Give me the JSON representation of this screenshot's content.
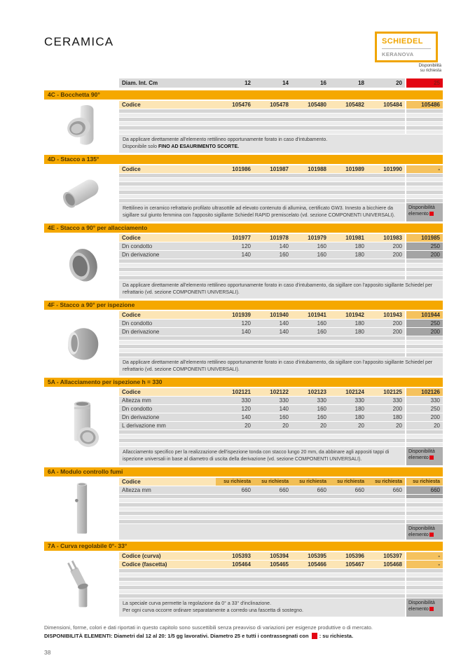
{
  "header": {
    "title": "CERAMICA",
    "logo": {
      "brand": "SCHIEDEL",
      "sub": "KERANOVA"
    },
    "availability_note": {
      "line1": "Disponibilità",
      "line2": "su richiesta"
    }
  },
  "colors": {
    "accent_orange": "#F5A800",
    "logo_orange": "#F0A500",
    "red": "#E30613",
    "codice_cream": "#FCE5B5",
    "codice_amber": "#F5C25E",
    "row_gray": "#DCDCDC",
    "dark_cell_gray": "#A4A4A4",
    "description_gray": "#E3E3E3",
    "availability_box_gray": "#AEAEAE"
  },
  "table": {
    "header_label": "Diam. Int. Cm",
    "columns": [
      "12",
      "14",
      "16",
      "18",
      "20",
      "25"
    ]
  },
  "availability_box": {
    "line1": "Disponibilità",
    "line2": "elemento"
  },
  "sections": [
    {
      "id": "4C",
      "title": "4C - Bocchetta 90°",
      "image": "bocchetta-90",
      "rows": [
        {
          "label": "Codice",
          "kind": "codice",
          "values": [
            "105476",
            "105478",
            "105480",
            "105482",
            "105484",
            "105486"
          ]
        }
      ],
      "stripes": 6,
      "description": [
        [
          {
            "t": "Da applicare direttamente all'elemento rettilineo opportunamente forato in caso d'intubamento.",
            "b": false
          }
        ],
        [
          {
            "t": "Disponibile solo ",
            "b": false
          },
          {
            "t": "FINO AD ESAURIMENTO SCORTE.",
            "b": true
          }
        ]
      ],
      "has_box": false
    },
    {
      "id": "4D",
      "title": "4D - Stacco a 135°",
      "image": "stacco-135",
      "rows": [
        {
          "label": "Codice",
          "kind": "codice",
          "values": [
            "101986",
            "101987",
            "101988",
            "101989",
            "101990",
            "-"
          ]
        }
      ],
      "stripes": 7,
      "description": [
        [
          {
            "t": "Rettilineo in ceramico refrattario profilato ultrasottile ad elevato contenuto di allumina, certificato GW3. Innesto a bicchiere da sigillare sul giunto femmina con l'apposito sigillante Schiedel RAPID premiscelato (vd. sezione COMPONENTI UNIVERSALI).",
            "b": false
          }
        ]
      ],
      "has_box": true
    },
    {
      "id": "4E",
      "title": "4E - Stacco a 90° per allacciamento",
      "image": "stacco-90-allacciamento",
      "rows": [
        {
          "label": "Codice",
          "kind": "codice",
          "values": [
            "101977",
            "101978",
            "101979",
            "101981",
            "101983",
            "101985"
          ]
        },
        {
          "label": "Dn condotto",
          "kind": "data",
          "dark_last": true,
          "values": [
            "120",
            "140",
            "160",
            "180",
            "200",
            "250"
          ]
        },
        {
          "label": "Dn derivazione",
          "kind": "data",
          "dark_last": true,
          "values": [
            "140",
            "160",
            "160",
            "180",
            "200",
            "200"
          ]
        }
      ],
      "stripes": 5,
      "description": [
        [
          {
            "t": "Da applicare direttamente all'elemento rettilineo opportunamente forato in caso d'intubamento, da sigillare con l'apposito sigillante Schiedel per refrattario (vd. sezione COMPONENTI UNIVERSALI).",
            "b": false
          }
        ]
      ],
      "has_box": false
    },
    {
      "id": "4F",
      "title": "4F - Stacco a 90° per ispezione",
      "image": "stacco-90-ispezione",
      "rows": [
        {
          "label": "Codice",
          "kind": "codice",
          "values": [
            "101939",
            "101940",
            "101941",
            "101942",
            "101943",
            "101944"
          ]
        },
        {
          "label": "Dn condotto",
          "kind": "data",
          "dark_last": true,
          "values": [
            "120",
            "140",
            "160",
            "180",
            "200",
            "250"
          ]
        },
        {
          "label": "Dn derivazione",
          "kind": "data",
          "dark_last": true,
          "values": [
            "140",
            "140",
            "160",
            "180",
            "200",
            "200"
          ]
        }
      ],
      "stripes": 5,
      "description": [
        [
          {
            "t": "Da applicare direttamente all'elemento rettilineo opportunamente forato in caso d'intubamento, da sigillare con l'apposito sigillante Schiedel per refrattario (vd. sezione COMPONENTI UNIVERSALI).",
            "b": false
          }
        ]
      ],
      "has_box": false
    },
    {
      "id": "5A",
      "title": "5A - Allacciamento per ispezione h = 330",
      "image": "allacciamento-ispezione",
      "rows": [
        {
          "label": "Codice",
          "kind": "codice",
          "values": [
            "102121",
            "102122",
            "102123",
            "102124",
            "102125",
            "102126"
          ]
        },
        {
          "label": "Altezza mm",
          "kind": "data",
          "values": [
            "330",
            "330",
            "330",
            "330",
            "330",
            "330"
          ]
        },
        {
          "label": "Dn condotto",
          "kind": "data",
          "values": [
            "120",
            "140",
            "160",
            "180",
            "200",
            "250"
          ]
        },
        {
          "label": "Dn derivazione",
          "kind": "data",
          "values": [
            "140",
            "160",
            "160",
            "180",
            "180",
            "200"
          ]
        },
        {
          "label": "L derivazione mm",
          "kind": "data",
          "values": [
            "20",
            "20",
            "20",
            "20",
            "20",
            "20"
          ]
        }
      ],
      "stripes": 4,
      "description": [
        [
          {
            "t": "Allacciamento specifico per la realizzazione dell'ispezione tonda con stacco lungo 20 mm, da abbinare agli appositi tappi di ispezione universali in base al diametro di uscita della derivazione (vd. sezione COMPONENTI UNIVERSALI).",
            "b": false
          }
        ]
      ],
      "has_box": true
    },
    {
      "id": "6A",
      "title": "6A - Modulo controllo fumi",
      "image": "modulo-controllo-fumi",
      "rows": [
        {
          "label": "Codice",
          "kind": "request",
          "values": [
            "su richiesta",
            "su richiesta",
            "su richiesta",
            "su richiesta",
            "su richiesta",
            "su richiesta"
          ]
        },
        {
          "label": "Altezza mm",
          "kind": "data",
          "dark_last": true,
          "values": [
            "660",
            "660",
            "660",
            "660",
            "660",
            "660"
          ]
        }
      ],
      "stripes": 7,
      "dark_stripe_last_cell": true,
      "description": [],
      "has_box": true
    },
    {
      "id": "7A",
      "title": "7A - Curva regolabile 0°- 33°",
      "image": "curva-regolabile",
      "rows": [
        {
          "label": "Codice (curva)",
          "kind": "codice",
          "values": [
            "105393",
            "105394",
            "105395",
            "105396",
            "105397",
            "-"
          ]
        },
        {
          "label": "Codice (fascetta)",
          "kind": "codice",
          "values": [
            "105464",
            "105465",
            "105466",
            "105467",
            "105468",
            "-"
          ]
        }
      ],
      "stripes": 7,
      "description": [
        [
          {
            "t": "La speciale curva permette la regolazione da 0° a 33° d'inclinazione.",
            "b": false
          }
        ],
        [
          {
            "t": "Per ogni curva occorre ordinare separatamente a corredo una fascetta di sostegno.",
            "b": false
          }
        ]
      ],
      "has_box": true
    }
  ],
  "footer": {
    "line1": "Dimensioni, forme, colori e dati riportati in questo capitolo sono suscettibili senza preavviso di variazioni per esigenze produttive o di mercato.",
    "line2": [
      {
        "t": "DISPONIBILITÀ ELEMENTI: Diametri dal 12 al 20: 1/5 gg lavorativi. Diametro 25 e tutti i contrassegnati con",
        "b": true
      },
      {
        "sq": true
      },
      {
        "t": ": su richiesta.",
        "b": true
      }
    ],
    "page_number": "38"
  }
}
